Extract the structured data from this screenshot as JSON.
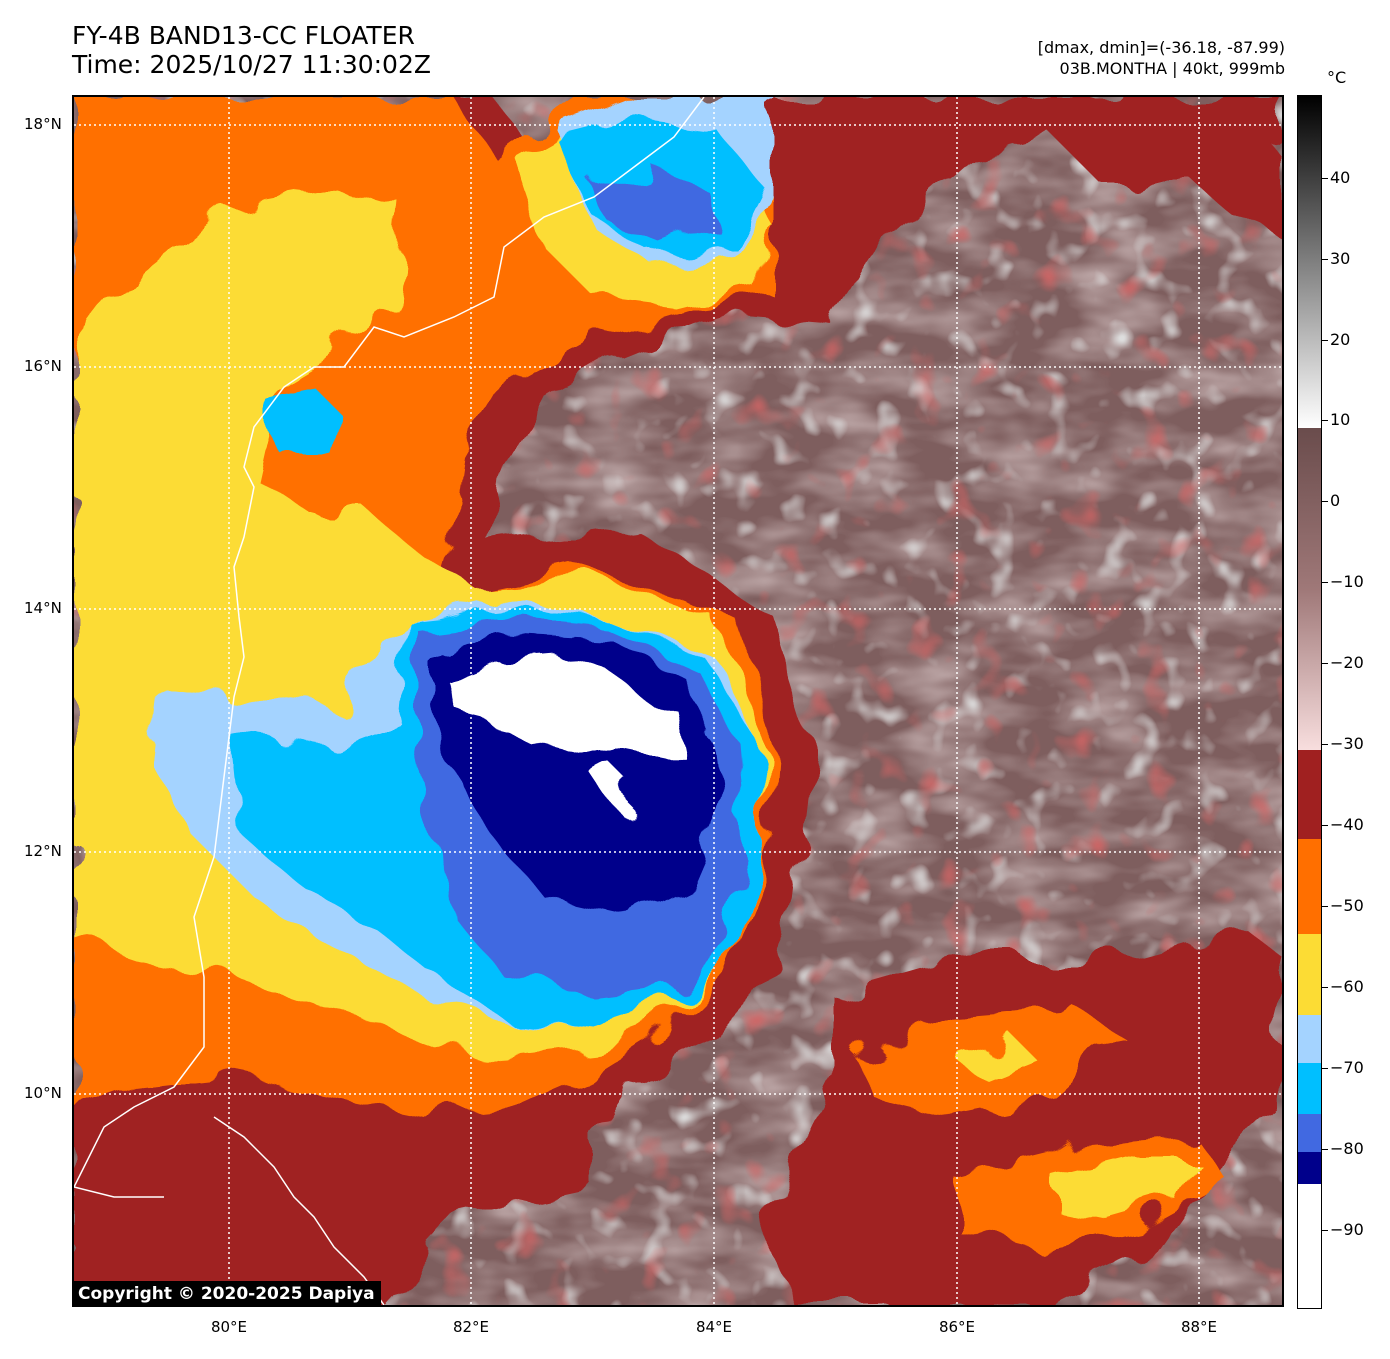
{
  "header": {
    "title_line1": "FY-4B BAND13-CC FLOATER",
    "title_line2": "Time: 2025/10/27 11:30:02Z",
    "info_line1": "[dmax, dmin]=(-36.18, -87.99)",
    "info_line2": "03B.MONTHA | 40kt, 999mb"
  },
  "map": {
    "lat_labels": [
      "18°N",
      "16°N",
      "14°N",
      "12°N",
      "10°N"
    ],
    "lon_labels": [
      "80°E",
      "82°E",
      "84°E",
      "86°E",
      "88°E"
    ],
    "lat_range": [
      8.2,
      18.25
    ],
    "lon_range": [
      78.7,
      88.7
    ],
    "gridlines": true,
    "copyright": "Copyright © 2020-2025 Dapiya"
  },
  "colorbar": {
    "unit": "°C",
    "labels": [
      "40",
      "30",
      "20",
      "10",
      "0",
      "−10",
      "−20",
      "−30",
      "−40",
      "−50",
      "−60",
      "−70",
      "−80",
      "−90"
    ],
    "range": [
      -100,
      50
    ],
    "bands": [
      {
        "from": -100,
        "to": -85,
        "color": "#ffffff"
      },
      {
        "from": -85,
        "to": -80,
        "color": "#00008b"
      },
      {
        "from": -80,
        "to": -75,
        "color": "#4169e1"
      },
      {
        "from": -75,
        "to": -68,
        "color": "#00bfff"
      },
      {
        "from": -68,
        "to": -58,
        "color": "#a4d3ff"
      },
      {
        "from": -58,
        "to": -48,
        "color": "#fcdc34"
      },
      {
        "from": -48,
        "to": -41,
        "color": "#ff6f00"
      },
      {
        "from": -41,
        "to": -30,
        "color": "#a02020"
      }
    ],
    "colors": {
      "warm_low": "#f8dede",
      "warm_mid": "#9f7878",
      "warm_high": "#6a4c4c",
      "gray_low": "#ffffff",
      "gray_high": "#000000"
    }
  }
}
